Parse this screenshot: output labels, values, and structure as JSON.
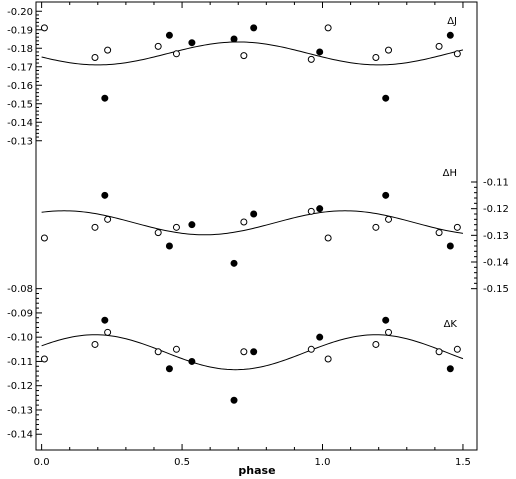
{
  "chart_data": {
    "type": "scatter",
    "xlabel": "phase",
    "x_ticks": [
      "0.0",
      "0.5",
      "1.0",
      "1.5"
    ],
    "xlim": [
      -0.02,
      1.55
    ],
    "panels": [
      {
        "label": "ΔJ",
        "axis": "left",
        "reversed": true,
        "ylim": [
          -0.205,
          -0.125
        ],
        "y_ticks": [
          "-0.20",
          "-0.19",
          "-0.18",
          "-0.17",
          "-0.16",
          "-0.15",
          "-0.14",
          "-0.13"
        ],
        "curve": {
          "mean": -0.1772,
          "amplitude": 0.0062,
          "peak_phase": 0.7
        },
        "series": [
          {
            "marker": "open",
            "points": [
              [
                0.01,
                -0.191
              ],
              [
                0.19,
                -0.175
              ],
              [
                0.235,
                -0.179
              ],
              [
                0.415,
                -0.181
              ],
              [
                0.48,
                -0.177
              ],
              [
                0.72,
                -0.176
              ],
              [
                0.96,
                -0.174
              ],
              [
                1.02,
                -0.191
              ],
              [
                1.19,
                -0.175
              ],
              [
                1.235,
                -0.179
              ],
              [
                1.415,
                -0.181
              ],
              [
                1.48,
                -0.177
              ]
            ]
          },
          {
            "marker": "filled",
            "points": [
              [
                0.225,
                -0.153
              ],
              [
                0.455,
                -0.187
              ],
              [
                0.535,
                -0.183
              ],
              [
                0.685,
                -0.185
              ],
              [
                0.755,
                -0.191
              ],
              [
                0.99,
                -0.178
              ],
              [
                1.225,
                -0.153
              ],
              [
                1.455,
                -0.187
              ]
            ]
          }
        ]
      },
      {
        "label": "ΔH",
        "axis": "right",
        "reversed": false,
        "ylim": [
          -0.098,
          -0.155
        ],
        "y_ticks": [
          "-0.15",
          "-0.14",
          "-0.13",
          "-0.12",
          "-0.11"
        ],
        "curve": {
          "mean": -0.1253,
          "amplitude": 0.0045,
          "peak_phase": 0.58
        },
        "series": [
          {
            "marker": "open",
            "points": [
              [
                0.01,
                -0.131
              ],
              [
                0.19,
                -0.127
              ],
              [
                0.235,
                -0.124
              ],
              [
                0.415,
                -0.129
              ],
              [
                0.48,
                -0.127
              ],
              [
                0.72,
                -0.125
              ],
              [
                0.96,
                -0.121
              ],
              [
                1.02,
                -0.131
              ],
              [
                1.19,
                -0.127
              ],
              [
                1.235,
                -0.124
              ],
              [
                1.415,
                -0.129
              ],
              [
                1.48,
                -0.127
              ]
            ]
          },
          {
            "marker": "filled",
            "points": [
              [
                0.225,
                -0.115
              ],
              [
                0.455,
                -0.134
              ],
              [
                0.535,
                -0.126
              ],
              [
                0.685,
                -0.1405
              ],
              [
                0.755,
                -0.122
              ],
              [
                0.99,
                -0.12
              ],
              [
                1.225,
                -0.115
              ],
              [
                1.455,
                -0.134
              ]
            ]
          }
        ]
      },
      {
        "label": "ΔK",
        "axis": "left",
        "reversed": false,
        "ylim": [
          -0.0855,
          -0.1465
        ],
        "y_ticks": [
          "-0.14",
          "-0.13",
          "-0.12",
          "-0.11",
          "-0.10",
          "-0.09",
          "-0.08"
        ],
        "curve": {
          "mean": -0.1062,
          "amplitude": 0.0072,
          "peak_phase": 0.69
        },
        "series": [
          {
            "marker": "open",
            "points": [
              [
                0.01,
                -0.109
              ],
              [
                0.19,
                -0.103
              ],
              [
                0.235,
                -0.098
              ],
              [
                0.415,
                -0.106
              ],
              [
                0.48,
                -0.105
              ],
              [
                0.72,
                -0.106
              ],
              [
                0.96,
                -0.105
              ],
              [
                1.02,
                -0.109
              ],
              [
                1.19,
                -0.103
              ],
              [
                1.235,
                -0.098
              ],
              [
                1.415,
                -0.106
              ],
              [
                1.48,
                -0.105
              ]
            ]
          },
          {
            "marker": "filled",
            "points": [
              [
                0.225,
                -0.093
              ],
              [
                0.455,
                -0.113
              ],
              [
                0.535,
                -0.11
              ],
              [
                0.685,
                -0.126
              ],
              [
                0.755,
                -0.106
              ],
              [
                0.99,
                -0.1
              ],
              [
                1.225,
                -0.093
              ],
              [
                1.455,
                -0.113
              ]
            ]
          }
        ]
      }
    ]
  }
}
